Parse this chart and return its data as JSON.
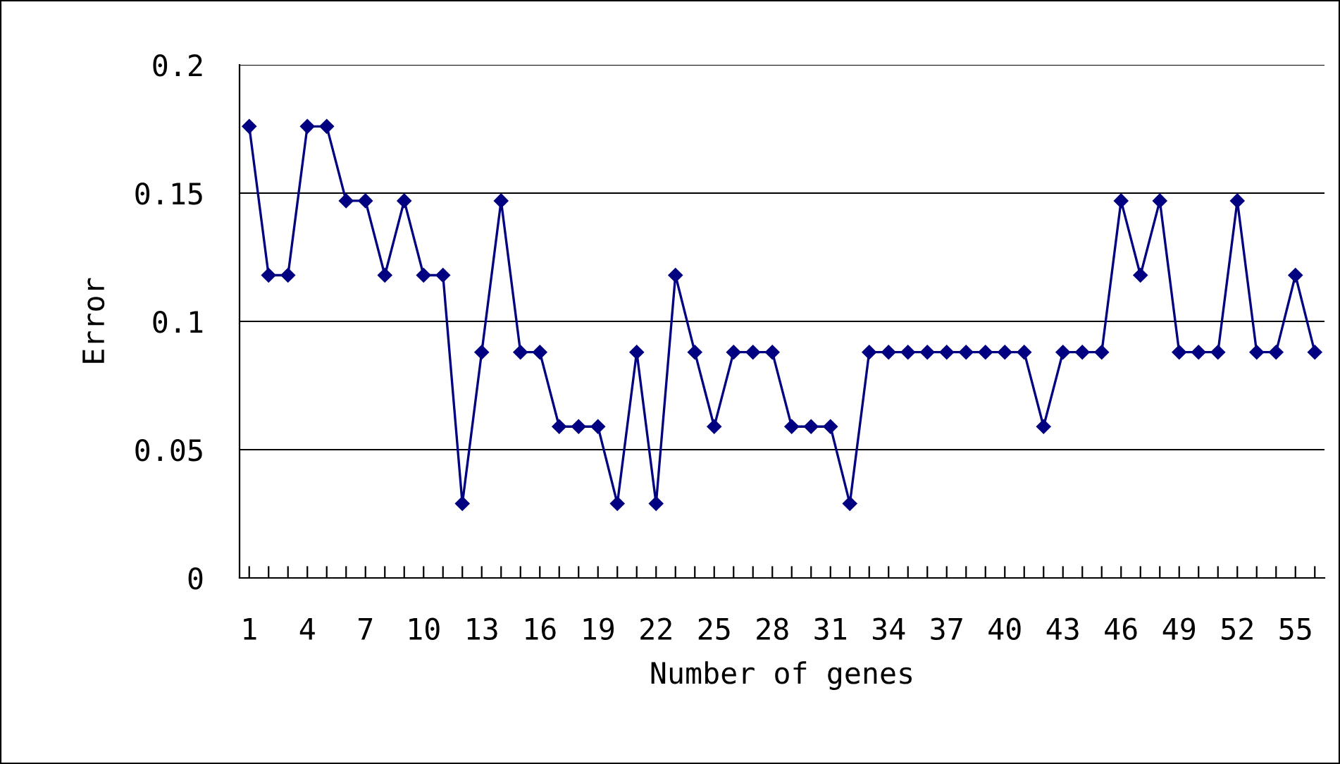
{
  "chart_data": {
    "type": "line",
    "xlabel": "Number of genes",
    "ylabel": "Error",
    "categories": [
      "1",
      null,
      null,
      "4",
      null,
      null,
      "7",
      null,
      null,
      "10",
      null,
      null,
      "13",
      null,
      null,
      "16",
      null,
      null,
      "19",
      null,
      null,
      "22",
      null,
      null,
      "25",
      null,
      null,
      "28",
      null,
      null,
      "31",
      null,
      null,
      "34",
      null,
      null,
      "37",
      null,
      null,
      "40",
      null,
      null,
      "43",
      null,
      null,
      "46",
      null,
      null,
      "49",
      null,
      null,
      "52",
      null,
      null,
      "55",
      null
    ],
    "series": [
      {
        "color": "#000080",
        "values": [
          0.176,
          0.118,
          0.118,
          0.176,
          0.176,
          0.147,
          0.147,
          0.118,
          0.147,
          0.118,
          0.118,
          0.029,
          0.088,
          0.147,
          0.088,
          0.088,
          0.059,
          0.059,
          0.059,
          0.029,
          0.088,
          0.029,
          0.118,
          0.088,
          0.059,
          0.088,
          0.088,
          0.088,
          0.059,
          0.059,
          0.059,
          0.029,
          0.088,
          0.088,
          0.088,
          0.088,
          0.088,
          0.088,
          0.088,
          0.088,
          0.088,
          0.059,
          0.088,
          0.088,
          0.088,
          0.147,
          0.118,
          0.147,
          0.088,
          0.088,
          0.088,
          0.147,
          0.088,
          0.088,
          0.118,
          0.088
        ]
      }
    ],
    "ylim": [
      0,
      0.2
    ],
    "yticks": [
      0,
      0.05,
      0.1,
      0.15,
      0.2
    ],
    "grid": "y",
    "legend": false,
    "marker": "diamond",
    "line_style": "solid"
  }
}
